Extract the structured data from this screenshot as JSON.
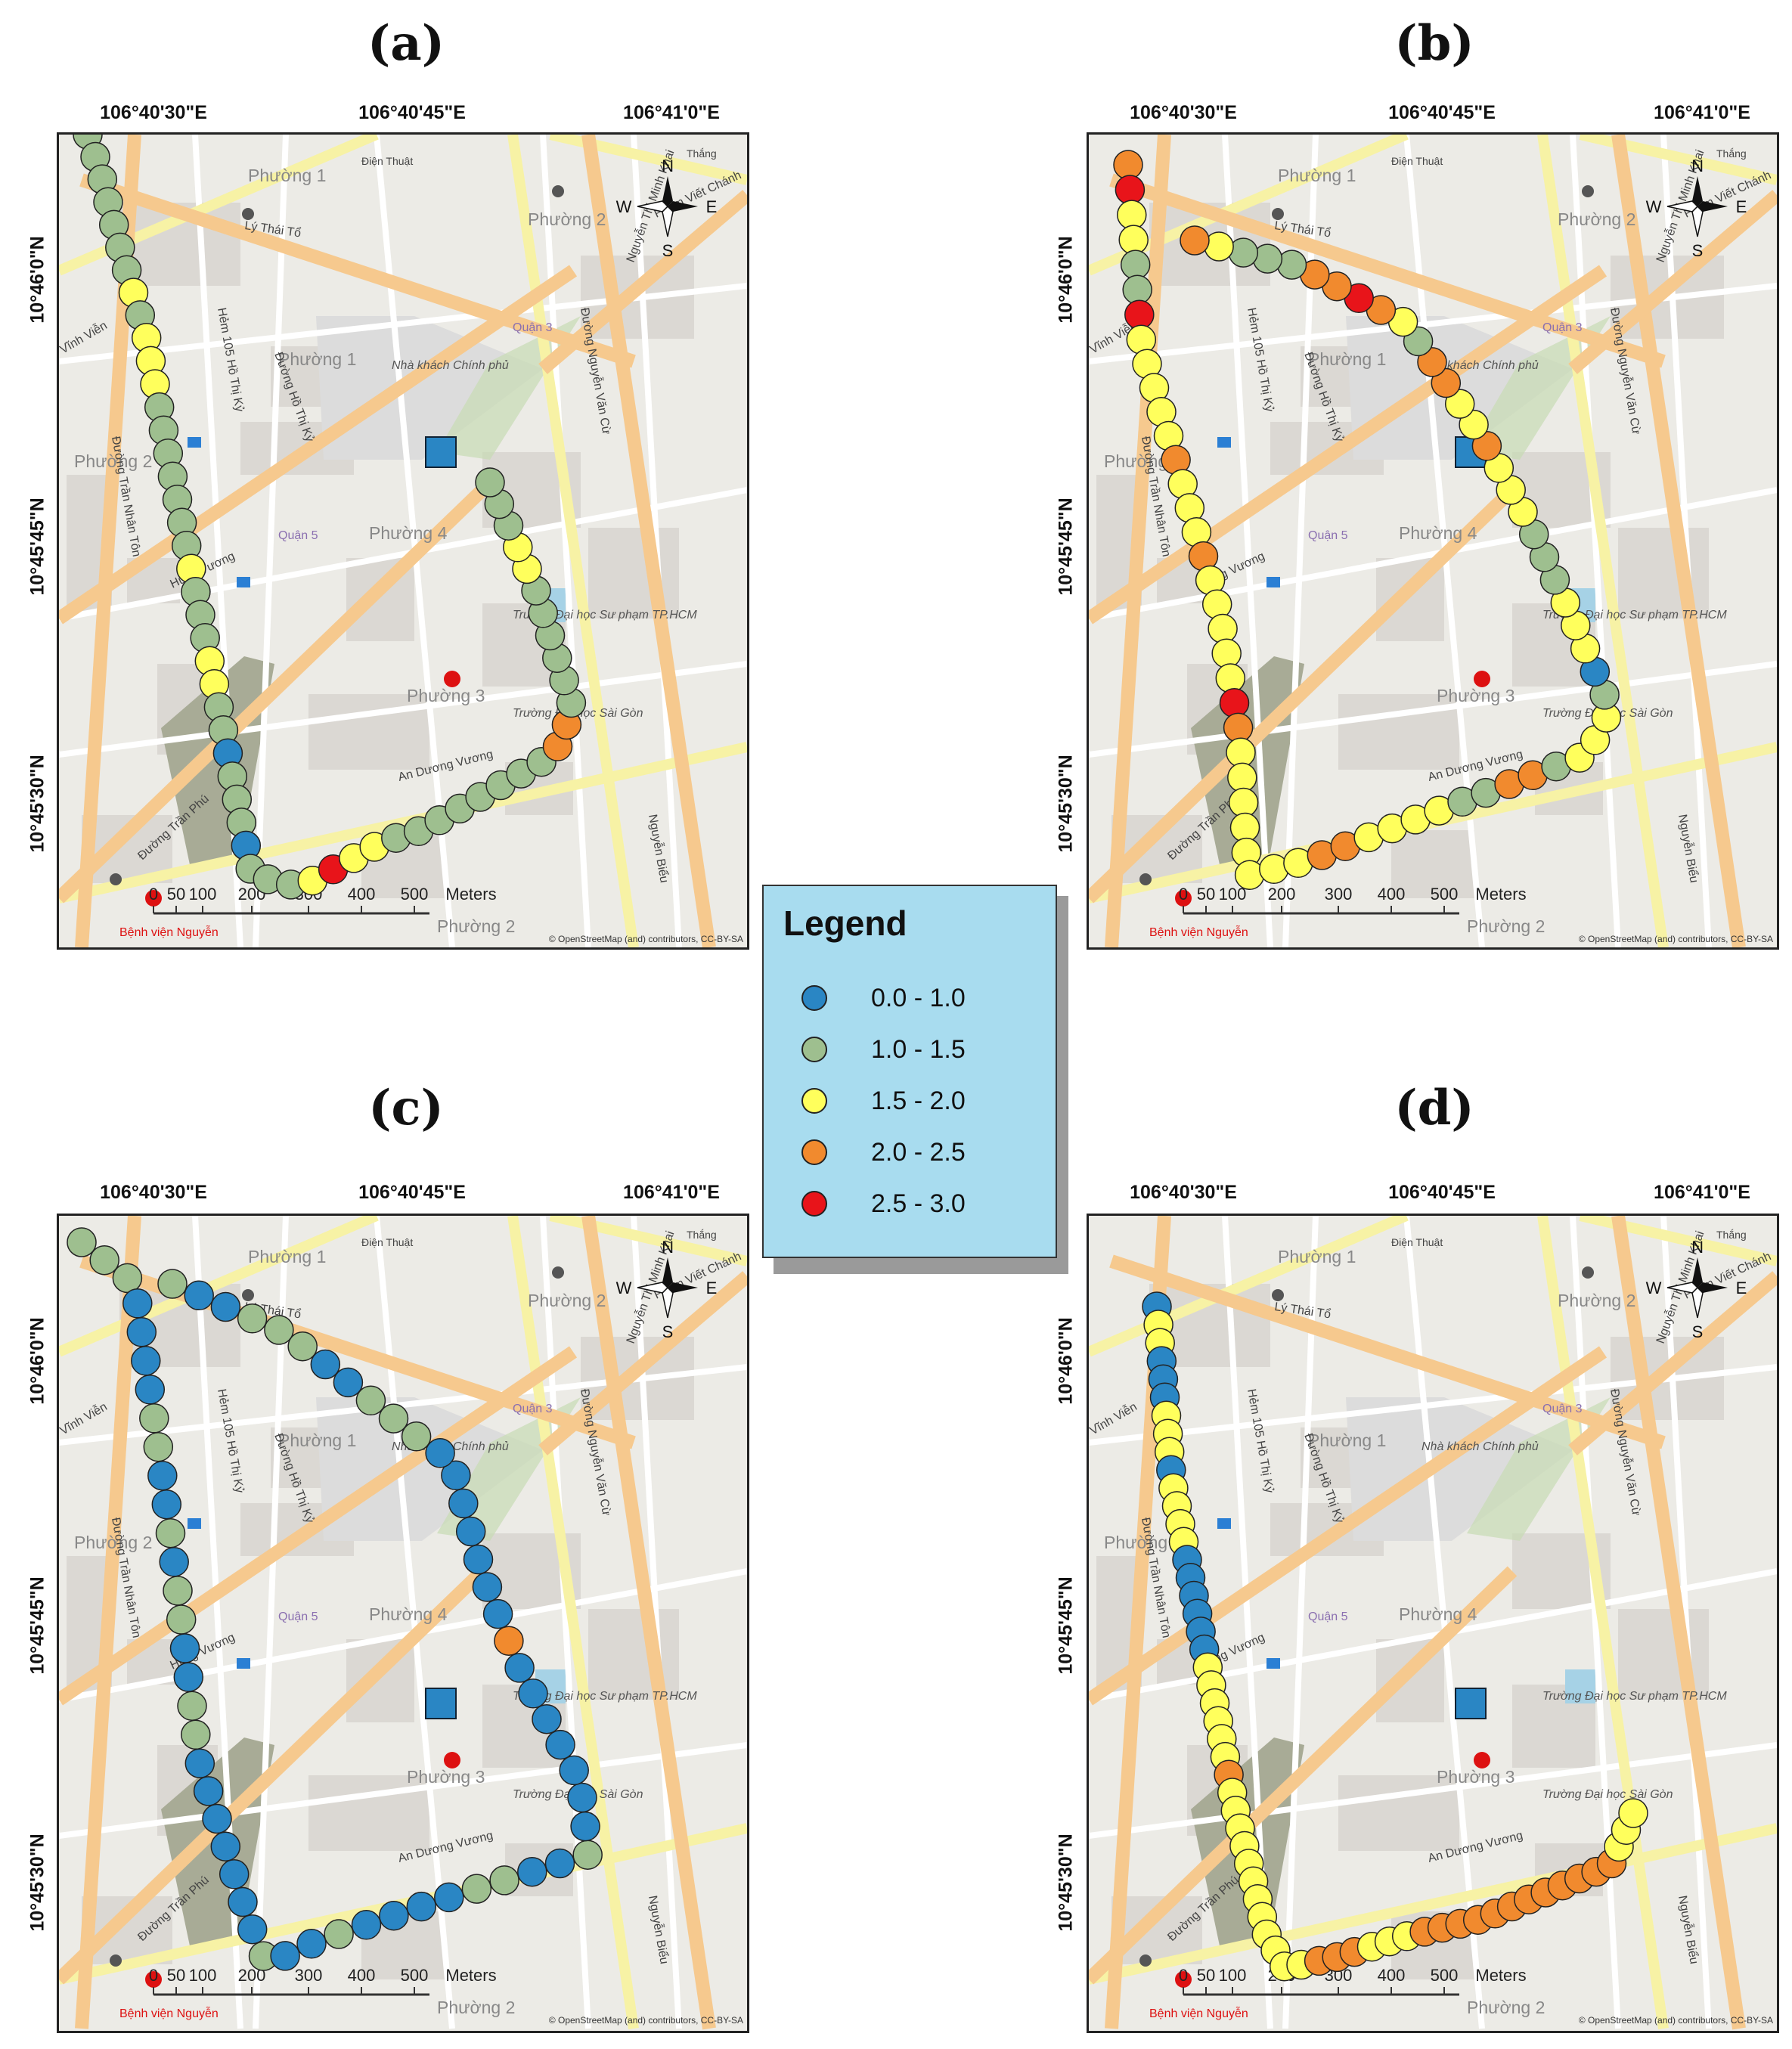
{
  "panels": [
    {
      "id": "a",
      "title": "(a)"
    },
    {
      "id": "b",
      "title": "(b)"
    },
    {
      "id": "c",
      "title": "(c)"
    },
    {
      "id": "d",
      "title": "(d)"
    }
  ],
  "axes": {
    "lon_labels": [
      "106°40'30\"E",
      "106°40'45\"E",
      "106°41'0\"E"
    ],
    "lat_labels": [
      "10°46'0\"N",
      "10°45'45\"N",
      "10°45'30\"N"
    ]
  },
  "map": {
    "place_labels": [
      "Phường 1",
      "Phường 2",
      "Phường 1",
      "Phường 4",
      "Phường 3",
      "Phường 2",
      "Phường 2"
    ],
    "street_labels": [
      "Lý Thái Tổ",
      "Đường Trần Phú",
      "An Dương Vương",
      "Hùng Vương",
      "Đường Hồ Thị Kỷ",
      "Hẻm 105 Hồ Thị Kỷ",
      "Đường Nguyễn Văn Cừ",
      "Nguyễn Biểu",
      "Nguyễn Thị Minh Khai",
      "Phạm Viết Chánh",
      "Đường Trần Nhân Tôn",
      "Vĩnh Viễn",
      "Quận 3",
      "Quận 5",
      "Điện Thuật",
      "Thắng"
    ],
    "poi_labels": [
      "Nhà khách Chính phủ",
      "Trường Đại học Sư phạm TP.HCM",
      "Trường Đại học Sài Gòn",
      "Bệnh viện Nguyễn"
    ],
    "scale_bar": {
      "ticks": [
        "0",
        "50",
        "100",
        "200",
        "300",
        "400",
        "500"
      ],
      "unit": "Meters"
    },
    "north_arrow": {
      "n": "N",
      "s": "S",
      "e": "E",
      "w": "W"
    },
    "attribution": "© OpenStreetMap (and) contributors, CC-BY-SA",
    "background_colors": {
      "land": "#ecebe6",
      "major_road": "#f6c98e",
      "secondary_road": "#f7f2a5",
      "minor_road": "#ffffff",
      "park": "#c7dcb4",
      "block": "#d9d6d0"
    }
  },
  "legend": {
    "title": "Legend",
    "items": [
      {
        "label": "0.0 - 1.0",
        "color": "#2a86c4"
      },
      {
        "label": "1.0 - 1.5",
        "color": "#9ebf8f"
      },
      {
        "label": "1.5 - 2.0",
        "color": "#ffff5c"
      },
      {
        "label": "2.0 - 2.5",
        "color": "#f18a2e"
      },
      {
        "label": "2.5 - 3.0",
        "color": "#e8141a"
      }
    ]
  },
  "station_marker": {
    "shape": "square",
    "color": "#2a86c4"
  }
}
